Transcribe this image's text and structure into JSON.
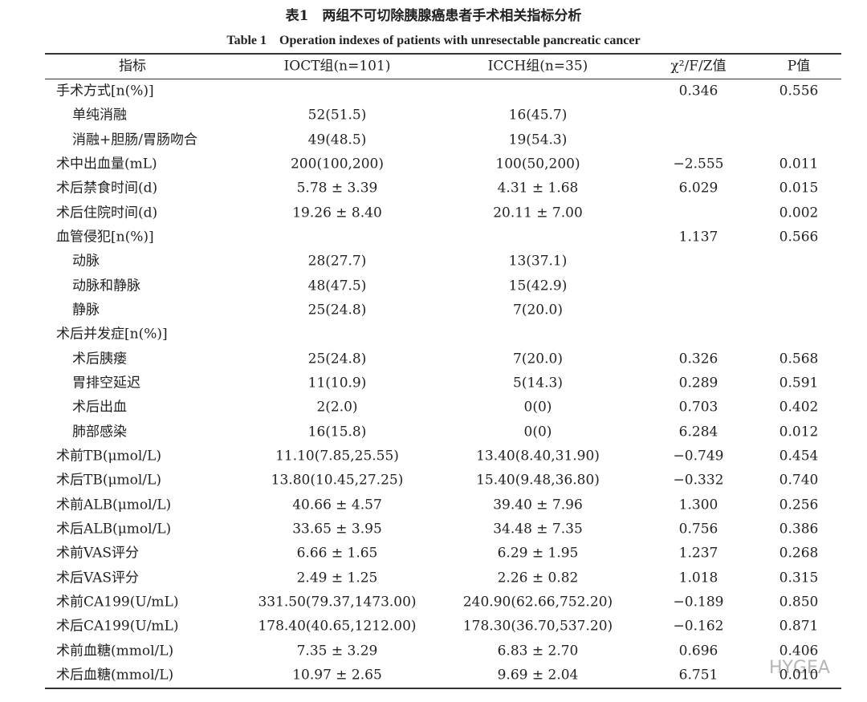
{
  "title": {
    "zh": "表1　两组不可切除胰腺癌患者手术相关指标分析",
    "en": "Table 1　Operation indexes of patients with unresectable pancreatic cancer"
  },
  "table": {
    "header": [
      "指标",
      "IOCT组(n=101)",
      "ICCH组(n=35)",
      "χ²/F/Z值",
      "P值"
    ],
    "rows": [
      [
        "手术方式[n(%)]",
        null,
        null,
        "0.346",
        "0.556"
      ],
      [
        "单纯消融",
        "52(51.5)",
        "16(45.7)",
        null,
        null
      ],
      [
        "消融+胆肠/胃肠吻合",
        "49(48.5)",
        "19(54.3)",
        null,
        null
      ],
      [
        "术中出血量(mL)",
        "200(100,200)",
        "100(50,200)",
        "−2.555",
        "0.011"
      ],
      [
        "术后禁食时间(d)",
        "5.78 ± 3.39",
        "4.31 ± 1.68",
        "6.029",
        "0.015"
      ],
      [
        "术后住院时间(d)",
        "19.26 ± 8.40",
        "20.11 ± 7.00",
        null,
        "0.002"
      ],
      [
        "血管侵犯[n(%)]",
        null,
        null,
        "1.137",
        "0.566"
      ],
      [
        "动脉",
        "28(27.7)",
        "13(37.1)",
        null,
        null
      ],
      [
        "动脉和静脉",
        "48(47.5)",
        "15(42.9)",
        null,
        null
      ],
      [
        "静脉",
        "25(24.8)",
        "7(20.0)",
        null,
        null
      ],
      [
        "术后并发症[n(%)]",
        null,
        null,
        null,
        null
      ],
      [
        "术后胰瘘",
        "25(24.8)",
        "7(20.0)",
        "0.326",
        "0.568"
      ],
      [
        "胃排空延迟",
        "11(10.9)",
        "5(14.3)",
        "0.289",
        "0.591"
      ],
      [
        "术后出血",
        "2(2.0)",
        "0(0)",
        "0.703",
        "0.402"
      ],
      [
        "肺部感染",
        "16(15.8)",
        "0(0)",
        "6.284",
        "0.012"
      ],
      [
        "术前TB(μmol/L)",
        "11.10(7.85,25.55)",
        "13.40(8.40,31.90)",
        "−0.749",
        "0.454"
      ],
      [
        "术后TB(μmol/L)",
        "13.80(10.45,27.25)",
        "15.40(9.48,36.80)",
        "−0.332",
        "0.740"
      ],
      [
        "术前ALB(μmol/L)",
        "40.66 ± 4.57",
        "39.40 ± 7.96",
        "1.300",
        "0.256"
      ],
      [
        "术后ALB(μmol/L)",
        "33.65 ± 3.95",
        "34.48 ± 7.35",
        "0.756",
        "0.386"
      ],
      [
        "术前VAS评分",
        "6.66 ± 1.65",
        "6.29 ± 1.95",
        "1.237",
        "0.268"
      ],
      [
        "术后VAS评分",
        "2.49 ± 1.25",
        "2.26 ± 0.82",
        "1.018",
        "0.315"
      ],
      [
        "术前CA199(U/mL)",
        "331.50(79.37,1473.00)",
        "240.90(62.66,752.20)",
        "−0.189",
        "0.850"
      ],
      [
        "术后CA199(U/mL)",
        "178.40(40.65,1212.00)",
        "178.30(36.70,537.20)",
        "−0.162",
        "0.871"
      ],
      [
        "术前血糖(mmol/L)",
        "7.35 ± 3.29",
        "6.83 ± 2.70",
        "0.696",
        "0.406"
      ],
      [
        "术后血糖(mmol/L)",
        "10.97 ± 2.65",
        "9.69 ± 2.04",
        "6.751",
        "0.010"
      ]
    ]
  },
  "watermark": "HYGEA"
}
